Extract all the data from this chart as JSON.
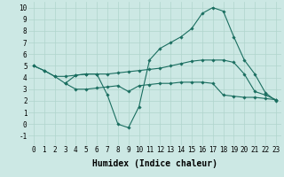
{
  "xlabel": "Humidex (Indice chaleur)",
  "ylabel": "",
  "xlim": [
    -0.5,
    23.5
  ],
  "ylim": [
    -1.8,
    10.5
  ],
  "xticks": [
    0,
    1,
    2,
    3,
    4,
    5,
    6,
    7,
    8,
    9,
    10,
    11,
    12,
    13,
    14,
    15,
    16,
    17,
    18,
    19,
    20,
    21,
    22,
    23
  ],
  "yticks": [
    -1,
    0,
    1,
    2,
    3,
    4,
    5,
    6,
    7,
    8,
    9,
    10
  ],
  "background_color": "#cce8e4",
  "grid_color": "#b0d4cc",
  "line_color": "#1a6e60",
  "line1_x": [
    0,
    1,
    2,
    3,
    4,
    5,
    6,
    7,
    8,
    9,
    10,
    11,
    12,
    13,
    14,
    15,
    16,
    17,
    18,
    19,
    20,
    21,
    22,
    23
  ],
  "line1_y": [
    5.0,
    4.6,
    4.1,
    4.1,
    4.2,
    4.3,
    4.3,
    4.3,
    4.4,
    4.5,
    4.6,
    4.7,
    4.8,
    5.0,
    5.2,
    5.4,
    5.5,
    5.5,
    5.5,
    5.3,
    4.3,
    2.8,
    2.5,
    2.1
  ],
  "line2_x": [
    0,
    1,
    2,
    3,
    4,
    5,
    6,
    7,
    8,
    9,
    10,
    11,
    12,
    13,
    14,
    15,
    16,
    17,
    18,
    19,
    20,
    21,
    22,
    23
  ],
  "line2_y": [
    5.0,
    4.6,
    4.1,
    3.5,
    3.0,
    3.0,
    3.1,
    3.2,
    3.3,
    2.8,
    3.3,
    3.4,
    3.5,
    3.5,
    3.6,
    3.6,
    3.6,
    3.5,
    2.5,
    2.4,
    2.3,
    2.3,
    2.2,
    2.1
  ],
  "line3_x": [
    3,
    4,
    5,
    6,
    7,
    8,
    9,
    10,
    11,
    12,
    13,
    14,
    15,
    16,
    17,
    18,
    19,
    20,
    21,
    22,
    23
  ],
  "line3_y": [
    3.5,
    4.2,
    4.3,
    4.3,
    2.5,
    0.0,
    -0.3,
    1.5,
    5.5,
    6.5,
    7.0,
    7.5,
    8.2,
    9.5,
    10.0,
    9.7,
    7.5,
    5.5,
    4.3,
    2.7,
    2.0
  ],
  "marker": "D",
  "marker_size": 1.8,
  "line_width": 0.8,
  "tick_fontsize": 5.5,
  "label_fontsize": 7.0
}
